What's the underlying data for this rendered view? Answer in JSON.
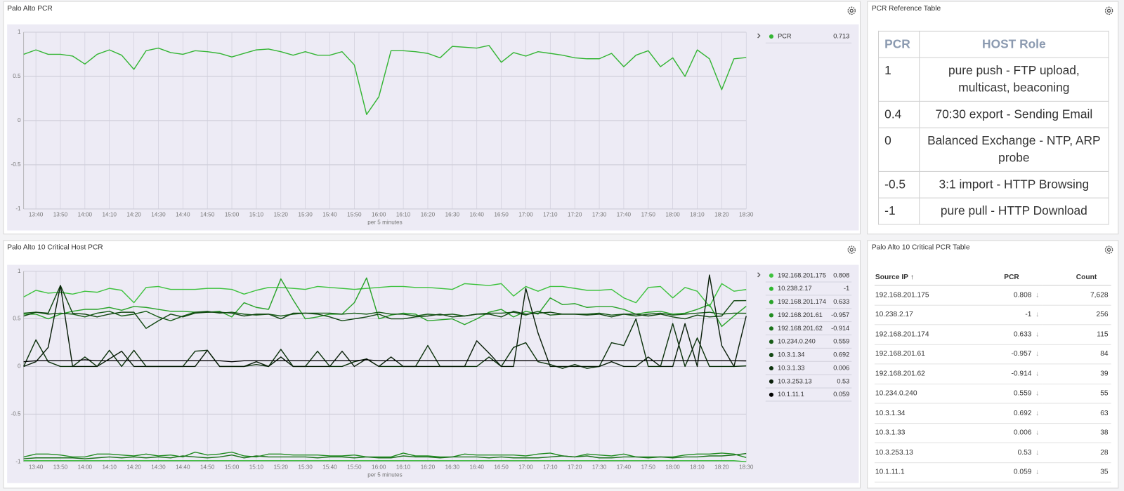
{
  "chart_data": [
    {
      "type": "line",
      "title": "Palo Alto PCR",
      "x_label": "per 5 minutes",
      "categories": [
        null,
        "13:40",
        null,
        "13:50",
        null,
        "14:00",
        null,
        "14:10",
        null,
        "14:20",
        null,
        "14:30",
        null,
        "14:40",
        null,
        "14:50",
        null,
        "15:00",
        null,
        "15:10",
        null,
        "15:20",
        null,
        "15:30",
        null,
        "15:40",
        null,
        "15:50",
        null,
        "16:00",
        null,
        "16:10",
        null,
        "16:20",
        null,
        "16:30",
        null,
        "16:40",
        null,
        "16:50",
        null,
        "17:00",
        null,
        "17:10",
        null,
        "17:20",
        null,
        "17:30",
        null,
        "17:40",
        null,
        "17:50",
        null,
        "18:00",
        null,
        "18:10",
        null,
        "18:20",
        null,
        "18:30"
      ],
      "series": [
        {
          "name": "PCR",
          "color": "#34b534",
          "legend_value": 0.713,
          "values": [
            0.75,
            0.8,
            0.75,
            0.75,
            0.73,
            0.64,
            0.75,
            0.8,
            0.74,
            0.58,
            0.79,
            0.82,
            0.77,
            0.75,
            0.79,
            0.78,
            0.76,
            0.72,
            0.76,
            0.8,
            0.81,
            0.78,
            0.74,
            0.78,
            0.74,
            0.74,
            0.78,
            0.63,
            0.07,
            0.27,
            0.79,
            0.79,
            0.78,
            0.76,
            0.71,
            0.84,
            0.83,
            0.82,
            0.85,
            0.66,
            0.77,
            0.73,
            0.78,
            0.76,
            0.74,
            0.71,
            0.7,
            0.7,
            0.76,
            0.61,
            0.74,
            0.79,
            0.61,
            0.71,
            0.5,
            0.8,
            0.7,
            0.35,
            0.7,
            0.713
          ]
        }
      ],
      "ylim": [
        -1,
        1
      ],
      "yticks": [
        -1,
        -0.5,
        0,
        0.5,
        1
      ],
      "grid": true,
      "legend": "right"
    },
    {
      "type": "line",
      "title": "Palo Alto 10 Critical Host PCR",
      "x_label": "per 5 minutes",
      "categories": [
        null,
        "13:40",
        null,
        "13:50",
        null,
        "14:00",
        null,
        "14:10",
        null,
        "14:20",
        null,
        "14:30",
        null,
        "14:40",
        null,
        "14:50",
        null,
        "15:00",
        null,
        "15:10",
        null,
        "15:20",
        null,
        "15:30",
        null,
        "15:40",
        null,
        "15:50",
        null,
        "16:00",
        null,
        "16:10",
        null,
        "16:20",
        null,
        "16:30",
        null,
        "16:40",
        null,
        "16:50",
        null,
        "17:00",
        null,
        "17:10",
        null,
        "17:20",
        null,
        "17:30",
        null,
        "17:40",
        null,
        "17:50",
        null,
        "18:00",
        null,
        "18:10",
        null,
        "18:20",
        null,
        "18:30"
      ],
      "series": [
        {
          "name": "192.168.201.175",
          "color": "#3ec23e",
          "legend_value": 0.808,
          "values": [
            0.73,
            0.8,
            0.77,
            0.78,
            0.76,
            0.79,
            0.78,
            0.82,
            0.8,
            0.67,
            0.83,
            0.84,
            0.81,
            0.81,
            0.81,
            0.82,
            0.82,
            0.81,
            0.76,
            0.8,
            0.83,
            0.83,
            0.82,
            0.81,
            0.84,
            0.83,
            0.82,
            0.81,
            0.82,
            0.83,
            0.84,
            0.84,
            0.83,
            0.83,
            0.82,
            0.81,
            0.87,
            0.86,
            0.85,
            0.87,
            0.74,
            0.84,
            0.79,
            0.84,
            0.84,
            0.82,
            0.8,
            0.8,
            0.81,
            0.72,
            0.67,
            0.83,
            0.84,
            0.72,
            0.83,
            0.79,
            0.63,
            0.87,
            0.79,
            0.808
          ]
        },
        {
          "name": "10.238.2.17",
          "color": "#2fb82f",
          "legend_value": -1,
          "values": [
            -0.99,
            -0.99,
            -0.99,
            -0.99,
            -0.99,
            -0.99,
            -0.99,
            -0.99,
            -0.99,
            -0.99,
            -0.99,
            -0.99,
            -0.99,
            -0.99,
            -0.99,
            -0.99,
            -0.99,
            -0.99,
            -0.99,
            -0.99,
            -0.99,
            -0.99,
            -0.99,
            -0.99,
            -0.99,
            -0.99,
            -0.99,
            -0.99,
            -0.99,
            -0.99,
            -0.99,
            -0.99,
            -0.99,
            -0.99,
            -0.99,
            -0.99,
            -0.99,
            -0.99,
            -0.99,
            -0.99,
            -0.99,
            -0.99,
            -0.99,
            -0.99,
            -0.99,
            -0.99,
            -0.99,
            -0.99,
            -0.99,
            -0.99,
            -0.99,
            -0.99,
            -0.99,
            -0.99,
            -0.99,
            -0.99,
            -0.99,
            -0.99,
            -0.99,
            -1
          ]
        },
        {
          "name": "192.168.201.174",
          "color": "#29a329",
          "legend_value": 0.633,
          "values": [
            0.55,
            0.55,
            0.5,
            0.55,
            0.58,
            0.6,
            0.6,
            0.62,
            0.59,
            0.63,
            0.62,
            0.6,
            0.58,
            0.58,
            0.57,
            0.57,
            0.58,
            0.52,
            0.67,
            0.62,
            0.6,
            0.92,
            0.7,
            0.5,
            0.52,
            0.55,
            0.55,
            0.67,
            0.93,
            0.5,
            0.54,
            0.56,
            0.55,
            0.48,
            0.49,
            0.5,
            0.44,
            0.5,
            0.57,
            0.6,
            0.52,
            0.58,
            0.55,
            0.72,
            0.65,
            0.66,
            0.62,
            0.63,
            0.63,
            0.6,
            0.55,
            0.57,
            0.58,
            0.55,
            0.56,
            0.6,
            0.65,
            0.42,
            0.53,
            0.633
          ]
        },
        {
          "name": "192.168.201.61",
          "color": "#218c21",
          "legend_value": -0.957,
          "values": [
            -0.95,
            -0.92,
            -0.92,
            -0.93,
            -0.95,
            -0.95,
            -0.92,
            -0.92,
            -0.93,
            -0.94,
            -0.92,
            -0.94,
            -0.93,
            -0.95,
            -0.9,
            -0.93,
            -0.92,
            -0.9,
            -0.94,
            -0.95,
            -0.92,
            -0.92,
            -0.93,
            -0.93,
            -0.93,
            -0.94,
            -0.94,
            -0.93,
            -0.95,
            -0.95,
            -0.95,
            -0.91,
            -0.94,
            -0.94,
            -0.95,
            -0.95,
            -0.92,
            -0.93,
            -0.93,
            -0.93,
            -0.93,
            -0.94,
            -0.92,
            -0.91,
            -0.94,
            -0.95,
            -0.92,
            -0.93,
            -0.94,
            -0.92,
            -0.95,
            -0.95,
            -0.95,
            -0.95,
            -0.93,
            -0.92,
            -0.92,
            -0.91,
            -0.92,
            -0.957
          ]
        },
        {
          "name": "192.168.201.62",
          "color": "#1b731b",
          "legend_value": -0.914,
          "values": [
            -0.97,
            -0.96,
            -0.96,
            -0.96,
            -0.96,
            -0.97,
            -0.96,
            -0.95,
            -0.96,
            -0.95,
            -0.96,
            -0.95,
            -0.96,
            -0.94,
            -0.95,
            -0.96,
            -0.95,
            -0.93,
            -0.96,
            -0.94,
            -0.95,
            -0.95,
            -0.95,
            -0.95,
            -0.96,
            -0.95,
            -0.95,
            -0.96,
            -0.95,
            -0.96,
            -0.96,
            -0.94,
            -0.95,
            -0.95,
            -0.96,
            -0.95,
            -0.95,
            -0.95,
            -0.96,
            -0.95,
            -0.96,
            -0.96,
            -0.96,
            -0.95,
            -0.94,
            -0.95,
            -0.94,
            -0.96,
            -0.96,
            -0.95,
            -0.95,
            -0.96,
            -0.95,
            -0.96,
            -0.95,
            -0.95,
            -0.94,
            -0.94,
            -0.93,
            -0.914
          ]
        },
        {
          "name": "10.234.0.240",
          "color": "#175c17",
          "legend_value": 0.559,
          "values": [
            0.56,
            0.57,
            0.55,
            0.56,
            0.55,
            0.52,
            0.56,
            0.58,
            0.53,
            0.55,
            0.58,
            0.52,
            0.48,
            0.53,
            0.57,
            0.58,
            0.56,
            0.57,
            0.55,
            0.54,
            0.55,
            0.53,
            0.55,
            0.56,
            0.56,
            0.56,
            0.55,
            0.56,
            0.55,
            0.57,
            0.55,
            0.55,
            0.53,
            0.55,
            0.54,
            0.55,
            0.53,
            0.55,
            0.56,
            0.56,
            0.57,
            0.54,
            0.58,
            0.54,
            0.55,
            0.55,
            0.55,
            0.56,
            0.54,
            0.55,
            0.53,
            0.55,
            0.56,
            0.54,
            0.55,
            0.56,
            0.57,
            0.55,
            0.56,
            0.559
          ]
        },
        {
          "name": "10.3.1.34",
          "color": "#124712",
          "legend_value": 0.692,
          "values": [
            0.53,
            0.57,
            0.56,
            0.85,
            0.56,
            0.55,
            0.52,
            0.55,
            0.57,
            0.57,
            0.4,
            0.48,
            0.55,
            0.52,
            0.56,
            0.57,
            0.57,
            0.56,
            0.53,
            0.55,
            0.55,
            0.5,
            0.56,
            0.56,
            0.55,
            0.52,
            0.48,
            0.5,
            0.52,
            0.55,
            0.5,
            0.5,
            0.52,
            0.53,
            0.55,
            0.52,
            0.53,
            0.55,
            0.55,
            0.52,
            0.58,
            0.55,
            0.56,
            0.57,
            0.55,
            0.55,
            0.54,
            0.55,
            0.52,
            0.55,
            0.55,
            0.53,
            0.55,
            0.52,
            0.5,
            0.54,
            0.52,
            0.53,
            0.69,
            0.692
          ]
        },
        {
          "name": "10.3.1.33",
          "color": "#0d330d",
          "legend_value": 0.006,
          "values": [
            0,
            0.28,
            0.05,
            0,
            0,
            0.1,
            0,
            0.17,
            0,
            0.17,
            0,
            0,
            0,
            0,
            0.16,
            0.17,
            0,
            0,
            0,
            0.02,
            0,
            0.18,
            0,
            0,
            0.16,
            0,
            0,
            0.05,
            0.08,
            0,
            0,
            0,
            0,
            0.22,
            0,
            0,
            0,
            0,
            0.1,
            0,
            0.2,
            0.25,
            0.05,
            0.02,
            -0.02,
            0.02,
            -0.02,
            0,
            0.25,
            0.22,
            0.5,
            0,
            0,
            0.45,
            0,
            0.3,
            0,
            0,
            0,
            0.006
          ]
        },
        {
          "name": "10.3.253.13",
          "color": "#0a1f0a",
          "legend_value": 0.53,
          "values": [
            0,
            0.05,
            0.2,
            0.85,
            0,
            0,
            0,
            0.08,
            0.16,
            0,
            0,
            0,
            0,
            0,
            0,
            0.17,
            0,
            0,
            0,
            0.05,
            0,
            0.1,
            0,
            0,
            0,
            0,
            0.16,
            0,
            0.08,
            0,
            0.1,
            0,
            0,
            0,
            0,
            0,
            0,
            0.27,
            0.14,
            0,
            0,
            0.82,
            0.35,
            0,
            0,
            0,
            0,
            0,
            0.05,
            0,
            0,
            0.1,
            0,
            0,
            0.45,
            0,
            0.96,
            0.22,
            0,
            0.53
          ]
        },
        {
          "name": "10.1.11.1",
          "color": "#000000",
          "legend_value": 0.059,
          "values": [
            0.05,
            0.06,
            0.06,
            0.06,
            0.06,
            0.07,
            0.06,
            0.06,
            0.06,
            0.06,
            0.06,
            0.06,
            0.06,
            0.06,
            0.06,
            0.06,
            0.06,
            0.05,
            0.06,
            0.06,
            0.06,
            0.06,
            0.06,
            0.06,
            0.06,
            0.06,
            0.06,
            0.06,
            0.07,
            0.06,
            0.06,
            0.06,
            0.06,
            0.06,
            0.06,
            0.06,
            0.06,
            0.06,
            0.06,
            0.06,
            0.06,
            0.06,
            0.06,
            0.06,
            0.06,
            0.06,
            0.06,
            0.06,
            0.06,
            0.06,
            0.06,
            0.06,
            0.06,
            0.06,
            0.06,
            0.06,
            0.06,
            0.06,
            0.06,
            0.059
          ]
        }
      ],
      "ylim": [
        -1,
        1
      ],
      "yticks": [
        -1,
        -0.5,
        0,
        0.5,
        1
      ],
      "grid": true,
      "legend": "right"
    }
  ],
  "reference_table": {
    "title": "PCR Reference Table",
    "headers": [
      "PCR",
      "HOST Role"
    ],
    "rows": [
      [
        1,
        "pure push - FTP upload, multicast, beaconing"
      ],
      [
        0.4,
        "70:30 export - Sending Email"
      ],
      [
        0,
        "Balanced Exchange - NTP, ARP probe"
      ],
      [
        -0.5,
        "3:1 import - HTTP Browsing"
      ],
      [
        -1,
        "pure pull - HTTP Download"
      ]
    ]
  },
  "critical_table": {
    "title": "Palo Alto 10 Critical PCR Table",
    "headers": [
      "Source IP",
      "PCR",
      "Count"
    ],
    "rows": [
      [
        "192.168.201.175",
        0.808,
        "7,628"
      ],
      [
        "10.238.2.17",
        -1,
        "256"
      ],
      [
        "192.168.201.174",
        0.633,
        "115"
      ],
      [
        "192.168.201.61",
        -0.957,
        "84"
      ],
      [
        "192.168.201.62",
        -0.914,
        "39"
      ],
      [
        "10.234.0.240",
        0.559,
        "55"
      ],
      [
        "10.3.1.34",
        0.692,
        "63"
      ],
      [
        "10.3.1.33",
        0.006,
        "38"
      ],
      [
        "10.3.253.13",
        0.53,
        "28"
      ],
      [
        "10.1.11.1",
        0.059,
        "35"
      ]
    ]
  }
}
